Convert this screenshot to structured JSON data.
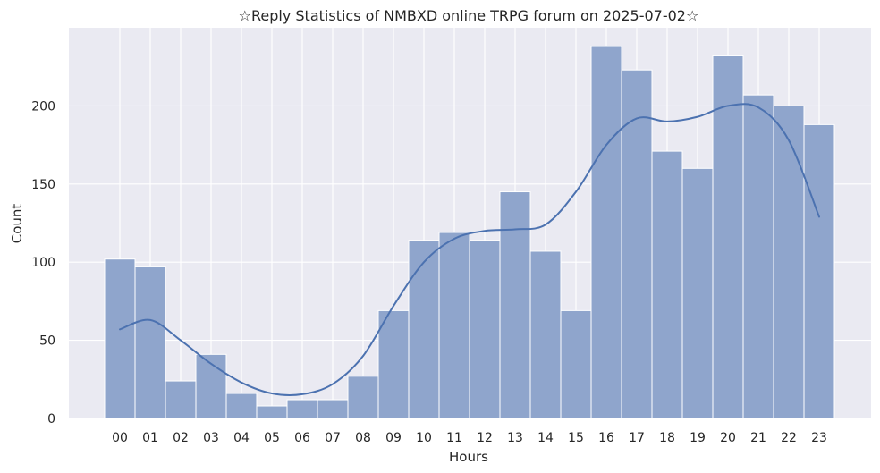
{
  "chart_data": {
    "type": "bar",
    "title": "☆Reply Statistics of NMBXD online TRPG forum on 2025-07-02☆",
    "xlabel": "Hours",
    "ylabel": "Count",
    "categories": [
      "00",
      "01",
      "02",
      "03",
      "04",
      "05",
      "06",
      "07",
      "08",
      "09",
      "10",
      "11",
      "12",
      "13",
      "14",
      "15",
      "16",
      "17",
      "18",
      "19",
      "20",
      "21",
      "22",
      "23"
    ],
    "values": [
      102,
      97,
      24,
      41,
      16,
      8,
      12,
      12,
      27,
      69,
      114,
      119,
      114,
      145,
      107,
      69,
      238,
      223,
      171,
      160,
      232,
      207,
      200,
      188
    ],
    "ylim": [
      0,
      250
    ],
    "yticks": [
      0,
      50,
      100,
      150,
      200
    ],
    "kde": {
      "name": "",
      "x": [
        0,
        1,
        2,
        3,
        4,
        5,
        6,
        7,
        8,
        9,
        10,
        11,
        12,
        13,
        14,
        15,
        16,
        17,
        18,
        19,
        20,
        21,
        22,
        23
      ],
      "y": [
        57,
        63,
        50,
        35,
        23,
        16,
        15.5,
        22,
        40,
        72,
        100,
        115,
        120,
        121,
        124,
        145,
        175,
        192,
        190,
        193,
        200,
        199,
        178,
        129
      ]
    },
    "grid": true,
    "colors": {
      "background": "#EAEAF2",
      "bar": "#8FA5CC",
      "bar_edge": "#FFFFFF",
      "line": "#4C72B0",
      "grid": "#FFFFFF"
    }
  }
}
